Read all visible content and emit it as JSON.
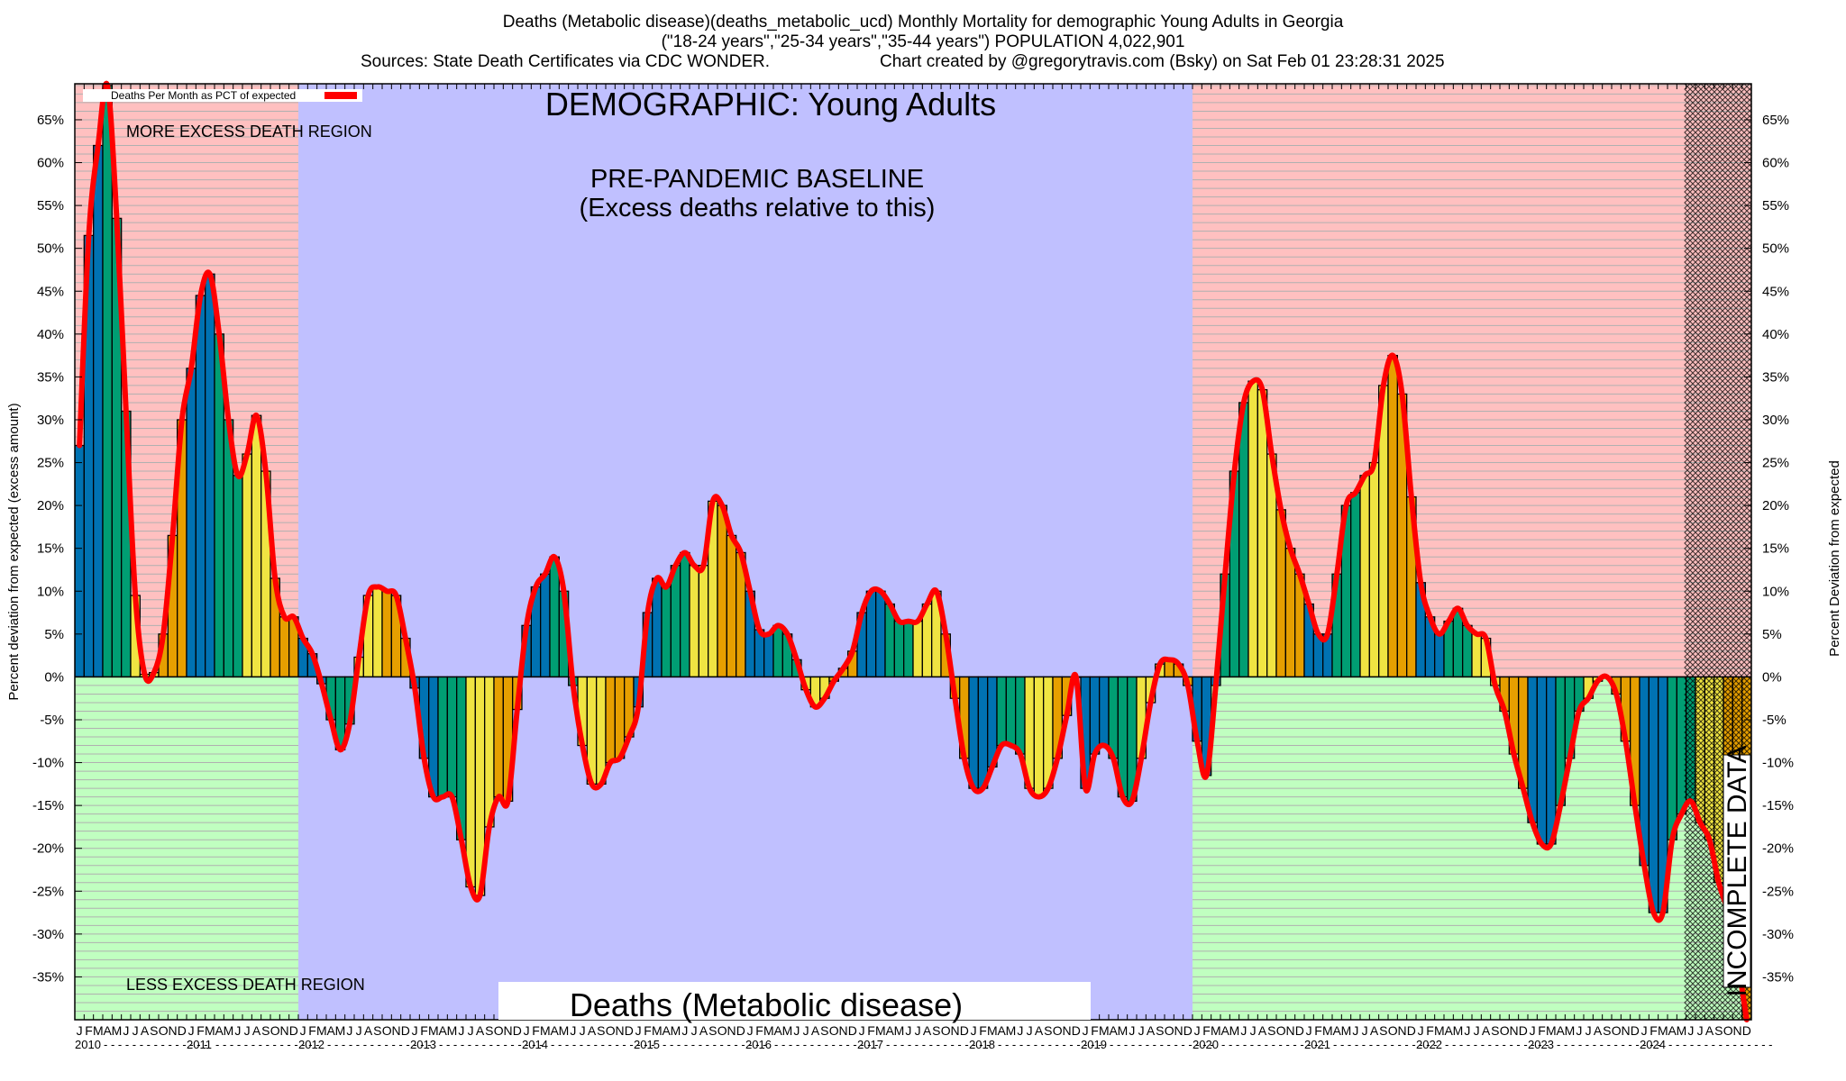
{
  "header": {
    "line1": "Deaths (Metabolic disease)(deaths_metabolic_ucd) Monthly Mortality for demographic Young Adults in Georgia",
    "line2": "(\"18-24 years\",\"25-34 years\",\"35-44 years\") POPULATION 4,022,901",
    "line3_left": "Sources: State Death Certificates via CDC WONDER.",
    "line3_right": "Chart created by @gregorytravis.com (Bsky) on Sat Feb 01 23:28:31 2025"
  },
  "chart_data": {
    "type": "bar",
    "title": "Deaths (Metabolic disease)(deaths_metabolic_ucd) Monthly Mortality for demographic Young Adults in Georgia",
    "subtitle": "(\"18-24 years\",\"25-34 years\",\"35-44 years\") POPULATION 4,022,901",
    "ylabel": "Percent deviation from expected (excess amount)",
    "ylabel_right": "Percent Deviation from expected",
    "xlabel": "",
    "ylim": [
      -40,
      69.2
    ],
    "yticks": [
      -35,
      -30,
      -25,
      -20,
      -15,
      -10,
      -5,
      0,
      5,
      10,
      15,
      20,
      25,
      30,
      35,
      40,
      45,
      50,
      55,
      60,
      65
    ],
    "ytick_format": "{v}%",
    "grid": true,
    "legend": {
      "placement": "top-left",
      "entries": [
        {
          "label": "Deaths Per Month as PCT of expected",
          "color": "#ff0000"
        }
      ]
    },
    "month_letters": [
      "J",
      "F",
      "M",
      "A",
      "M",
      "J",
      "J",
      "A",
      "S",
      "O",
      "N",
      "D"
    ],
    "years": [
      "2010",
      "2011",
      "2012",
      "2013",
      "2014",
      "2015",
      "2016",
      "2017",
      "2018",
      "2019",
      "2020",
      "2021",
      "2022",
      "2023",
      "2024"
    ],
    "quarter_colors": [
      "#0072b2",
      "#009e73",
      "#f0e442",
      "#e69f00"
    ],
    "line_color": "#ff0000",
    "series": [
      {
        "name": "Deaths Per Month as PCT of expected",
        "start": "2010-01",
        "values": [
          27,
          51.5,
          62,
          69,
          53.5,
          31,
          9.5,
          0.3,
          0.5,
          5,
          16.5,
          30,
          36,
          44.5,
          47,
          40,
          30,
          23.5,
          26,
          30.5,
          24,
          11.5,
          7,
          7,
          4.5,
          2.7,
          -0.8,
          -5,
          -8.5,
          -5.5,
          2.3,
          9.5,
          10.5,
          10,
          9.5,
          4.5,
          -1.3,
          -9.5,
          -14,
          -14,
          -14,
          -19,
          -24.5,
          -25.5,
          -17.5,
          -14,
          -14.5,
          -3.8,
          6,
          10.5,
          12,
          14,
          10,
          -1,
          -8,
          -12.5,
          -12.5,
          -10,
          -9.5,
          -7,
          -3.5,
          7.5,
          11.5,
          10.5,
          13,
          14.5,
          13,
          13,
          20.5,
          20,
          16.5,
          14.5,
          10,
          5.5,
          5,
          6,
          5,
          2,
          -1.5,
          -3.5,
          -2.5,
          -0.5,
          1,
          3,
          7.5,
          10,
          10,
          8.5,
          6.5,
          6.5,
          6.5,
          8.5,
          10,
          5,
          -2.5,
          -9.5,
          -13,
          -13,
          -10.5,
          -8,
          -8,
          -9,
          -13,
          -14,
          -13,
          -9.5,
          -4.5,
          0,
          -13,
          -9,
          -8,
          -9.5,
          -14,
          -14.5,
          -9.5,
          -3,
          1.5,
          2,
          1.5,
          -1,
          -7.5,
          -11.5,
          -1,
          12,
          24,
          32,
          34.5,
          33.5,
          26,
          19.5,
          15,
          12,
          8.5,
          5,
          5,
          12,
          20,
          21.5,
          23.5,
          25,
          34,
          37.5,
          33,
          21,
          11,
          7,
          5,
          6.5,
          8,
          6,
          5,
          4.5,
          -1,
          -4,
          -9,
          -13,
          -17,
          -19.5,
          -19.5,
          -15,
          -9.5,
          -4,
          -2.5,
          -0.5,
          0,
          -2,
          -7.5,
          -15,
          -22,
          -27.5,
          -27.5,
          -19,
          -16,
          -14.5,
          -17,
          -19,
          -24,
          -27.5,
          -33,
          -40
        ]
      }
    ],
    "regions": [
      {
        "name": "pre-pandemic-baseline",
        "from": "2012-01",
        "to": "2019-12",
        "color": "#c0c0ff"
      },
      {
        "name": "more-excess",
        "color": "#ffc0c0"
      },
      {
        "name": "less-excess",
        "color": "#c0ffc0"
      },
      {
        "name": "incomplete-data",
        "from": "2024-06",
        "to": "2024-12"
      }
    ],
    "annotations": {
      "demographic": "DEMOGRAPHIC: Young Adults",
      "baseline_line1": "PRE-PANDEMIC BASELINE",
      "baseline_line2": "(Excess deaths relative to this)",
      "more_excess": "MORE EXCESS DEATH REGION",
      "less_excess": "LESS EXCESS DEATH REGION",
      "incomplete": "INCOMPLETE DATA",
      "cause_box": "Deaths (Metabolic disease)"
    }
  }
}
